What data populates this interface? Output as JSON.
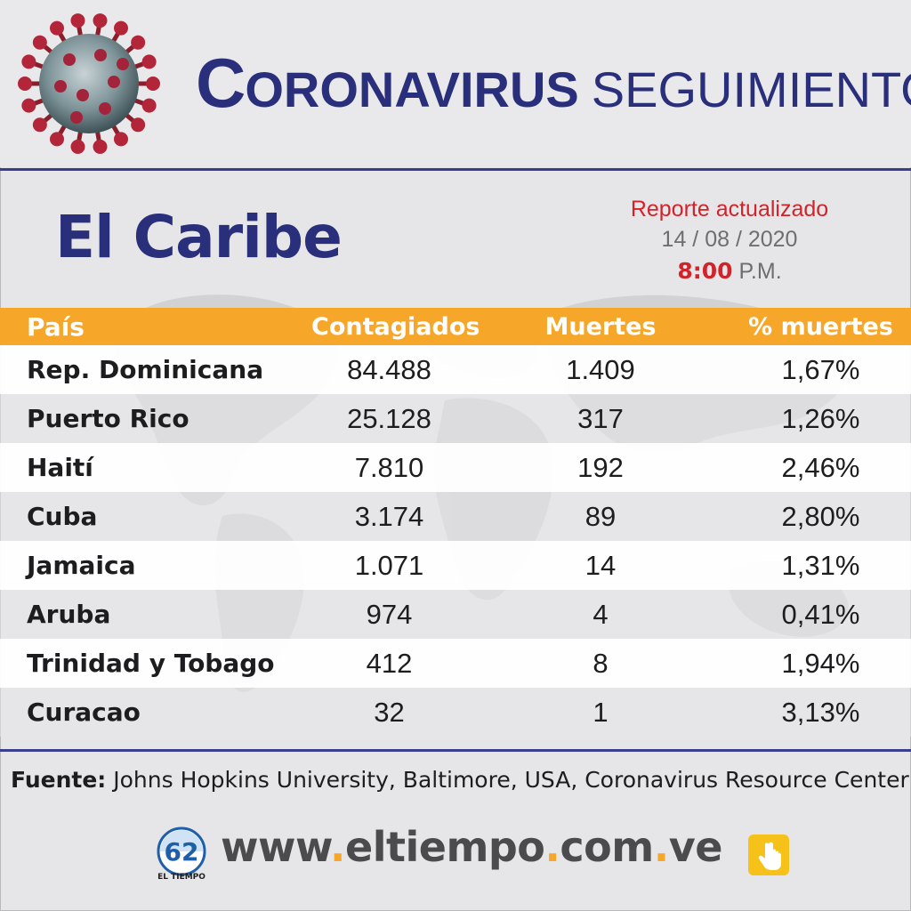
{
  "header": {
    "title_initial": "C",
    "title_rest": "ORONAVIRUS",
    "title_second": "SEGUIMIENTO",
    "virus_icon": "coronavirus-icon"
  },
  "region_title": "El Caribe",
  "report": {
    "label": "Reporte actualizado",
    "date": "14 / 08 / 2020",
    "time": "8:00",
    "meridiem": "P.M."
  },
  "table": {
    "headers": {
      "country": "País",
      "cases": "Contagiados",
      "deaths": "Muertes",
      "pct": "% muertes"
    },
    "rows": [
      {
        "country": "Rep. Dominicana",
        "cases": "84.488",
        "deaths": "1.409",
        "pct": "1,67%"
      },
      {
        "country": "Puerto Rico",
        "cases": "25.128",
        "deaths": "317",
        "pct": "1,26%"
      },
      {
        "country": "Haití",
        "cases": "7.810",
        "deaths": "192",
        "pct": "2,46%"
      },
      {
        "country": "Cuba",
        "cases": "3.174",
        "deaths": "89",
        "pct": "2,80%"
      },
      {
        "country": "Jamaica",
        "cases": "1.071",
        "deaths": "14",
        "pct": "1,31%"
      },
      {
        "country": "Aruba",
        "cases": "974",
        "deaths": "4",
        "pct": "0,41%"
      },
      {
        "country": "Trinidad y Tobago",
        "cases": "412",
        "deaths": "8",
        "pct": "1,94%"
      },
      {
        "country": "Curacao",
        "cases": "32",
        "deaths": "1",
        "pct": "3,13%"
      }
    ]
  },
  "source": {
    "label": "Fuente:",
    "text": "Johns Hopkins University, Baltimore, USA, Coronavirus Resource Center"
  },
  "footer": {
    "logo_number": "62",
    "logo_text": "EL TIEMPO",
    "url_parts": [
      "www",
      ".",
      "eltiempo",
      ".",
      "com",
      ".",
      "ve"
    ],
    "hand_icon": "pointer-hand-icon"
  },
  "colors": {
    "navy": "#2a2f7c",
    "orange": "#f6a72a",
    "red": "#d3232a"
  }
}
